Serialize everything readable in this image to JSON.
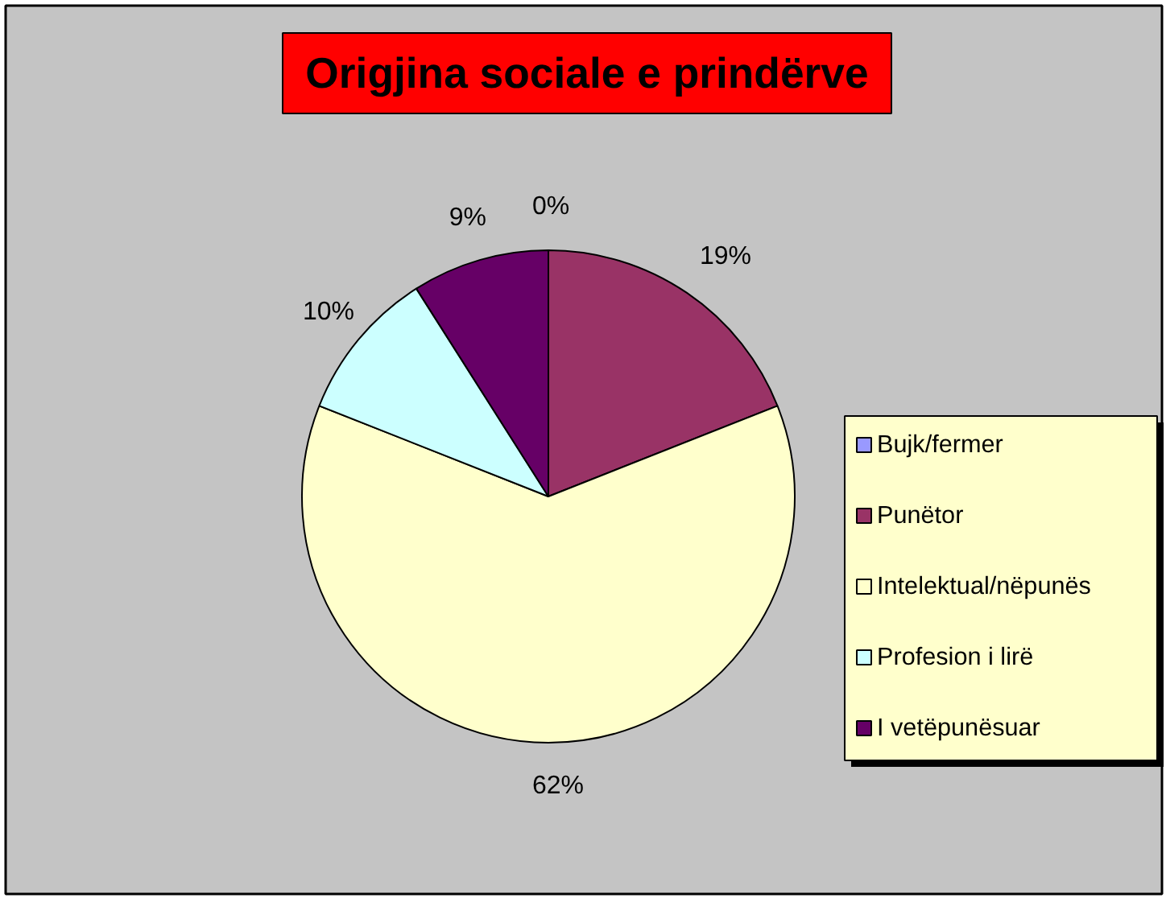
{
  "chart_data": {
    "type": "pie",
    "title": "Origjina sociale e prindërve",
    "categories": [
      "Bujk/fermer",
      "Punëtor",
      "Intelektual/nëpunës",
      "Profesion i lirë",
      "I vetëpunësuar"
    ],
    "values": [
      0,
      19,
      62,
      10,
      9
    ],
    "colors": [
      "#9999ff",
      "#993366",
      "#ffffcc",
      "#ccffff",
      "#660066"
    ],
    "value_labels": [
      "0%",
      "19%",
      "62%",
      "10%",
      "9%"
    ],
    "legend": "right"
  }
}
